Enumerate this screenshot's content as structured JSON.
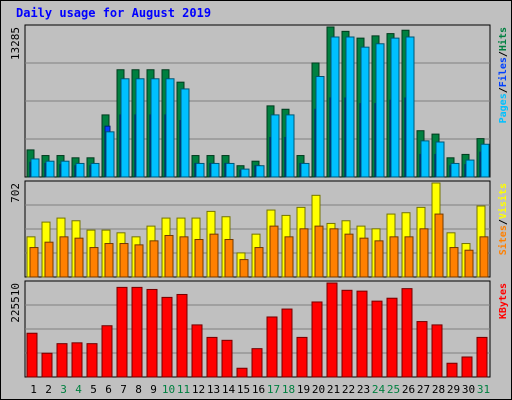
{
  "chart_data": {
    "type": "bar",
    "title": "Daily usage for August 2019",
    "colors": {
      "background": "#c0c0c0",
      "title": "#0000ff",
      "pages": "#00c0ff",
      "files": "#0040ff",
      "hits": "#008040",
      "visits": "#ffff00",
      "sites": "#ff8000",
      "kbytes": "#ff0000",
      "weekend_day": "#008040",
      "weekday": "#000000"
    },
    "x": [
      "1",
      "2",
      "3",
      "4",
      "5",
      "6",
      "7",
      "8",
      "9",
      "10",
      "11",
      "12",
      "13",
      "14",
      "15",
      "16",
      "17",
      "18",
      "19",
      "20",
      "21",
      "22",
      "23",
      "24",
      "25",
      "26",
      "27",
      "28",
      "29",
      "30",
      "31"
    ],
    "weekend": [
      false,
      false,
      true,
      true,
      false,
      false,
      false,
      false,
      false,
      true,
      true,
      false,
      false,
      false,
      false,
      false,
      true,
      true,
      false,
      false,
      false,
      false,
      false,
      true,
      true,
      false,
      false,
      false,
      false,
      false,
      true
    ],
    "panels": [
      {
        "id": "hits-files-pages",
        "ymax_label": "13285",
        "ylim": [
          0,
          13285
        ],
        "legend_parts": [
          {
            "text": "Pages",
            "color": "#00c0ff"
          },
          {
            "text": "/",
            "color": "#000000"
          },
          {
            "text": "Files",
            "color": "#0040ff"
          },
          {
            "text": "/",
            "color": "#000000"
          },
          {
            "text": "Hits",
            "color": "#008040"
          }
        ],
        "series": [
          {
            "name": "Hits",
            "color": "#008040",
            "values": [
              2400,
              1900,
              1900,
              1700,
              1700,
              5500,
              9500,
              9500,
              9500,
              9500,
              8400,
              1900,
              1900,
              1900,
              1000,
              1400,
              6300,
              6000,
              1900,
              10100,
              13285,
              12900,
              12300,
              12500,
              12700,
              13000,
              4100,
              3800,
              1700,
              2000,
              3400
            ]
          },
          {
            "name": "Files",
            "color": "#0040ff",
            "values": [
              1300,
              1200,
              1100,
              1000,
              1000,
              4500,
              5500,
              5500,
              5500,
              5500,
              5000,
              1200,
              1200,
              1200,
              600,
              1000,
              3500,
              3500,
              1200,
              6000,
              7000,
              7000,
              6500,
              6500,
              6800,
              7000,
              2000,
              2000,
              1000,
              1100,
              2200
            ]
          },
          {
            "name": "Pages",
            "color": "#00c0ff",
            "values": [
              1600,
              1400,
              1400,
              1200,
              1200,
              4000,
              8700,
              8700,
              8700,
              8700,
              7800,
              1200,
              1200,
              1200,
              700,
              1000,
              5500,
              5500,
              1200,
              8900,
              12400,
              12400,
              11500,
              11800,
              12300,
              12400,
              3200,
              3100,
              1200,
              1500,
              2900
            ]
          }
        ]
      },
      {
        "id": "visits-sites",
        "ymax_label": "702",
        "ylim": [
          0,
          702
        ],
        "legend_parts": [
          {
            "text": "Sites",
            "color": "#ff8000"
          },
          {
            "text": "/",
            "color": "#000000"
          },
          {
            "text": "Visits",
            "color": "#ffff00"
          }
        ],
        "series": [
          {
            "name": "Visits",
            "color": "#ffff00",
            "values": [
              300,
              410,
              440,
              420,
              350,
              350,
              330,
              300,
              380,
              440,
              440,
              440,
              490,
              450,
              180,
              320,
              500,
              460,
              520,
              610,
              400,
              420,
              380,
              360,
              470,
              480,
              520,
              702,
              330,
              250,
              530
            ]
          },
          {
            "name": "Sites",
            "color": "#ff8000",
            "values": [
              220,
              260,
              300,
              290,
              220,
              250,
              250,
              240,
              270,
              310,
              300,
              280,
              320,
              280,
              130,
              220,
              380,
              300,
              360,
              380,
              360,
              320,
              290,
              270,
              300,
              300,
              360,
              470,
              220,
              200,
              300
            ]
          }
        ]
      },
      {
        "id": "kbytes",
        "ymax_label": "225510",
        "ylim": [
          0,
          225510
        ],
        "legend_parts": [
          {
            "text": "KBytes",
            "color": "#ff0000"
          }
        ],
        "series": [
          {
            "name": "KBytes",
            "color": "#ff0000",
            "values": [
              105000,
              57000,
              80000,
              82000,
              80000,
              123000,
              215000,
              215000,
              210000,
              191000,
              198000,
              125000,
              95000,
              88000,
              21000,
              68000,
              144000,
              163000,
              95000,
              180000,
              225510,
              208000,
              206000,
              182000,
              189000,
              212000,
              133000,
              125000,
              33000,
              48000,
              95000
            ]
          }
        ]
      }
    ]
  }
}
